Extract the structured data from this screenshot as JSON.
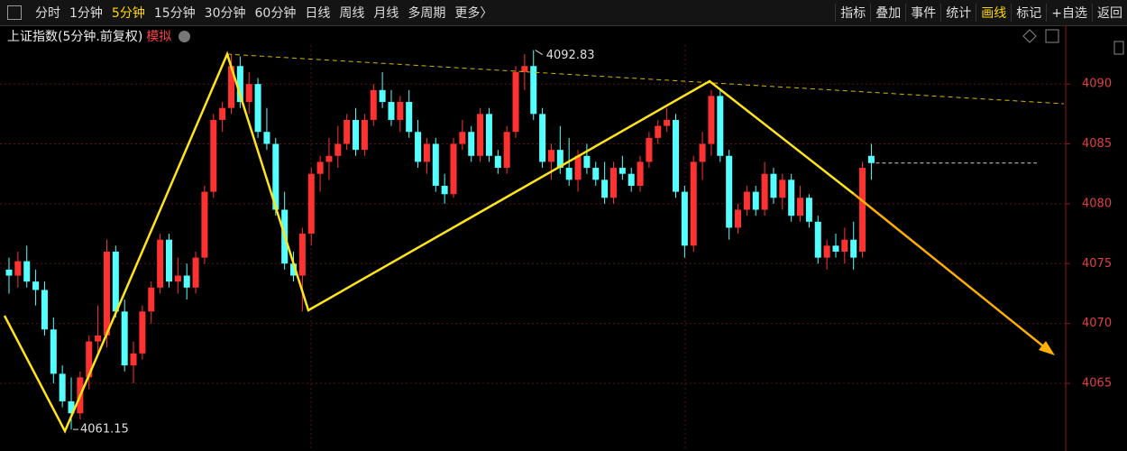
{
  "toolbar": {
    "left": [
      "分时",
      "1分钟",
      "5分钟",
      "15分钟",
      "30分钟",
      "60分钟",
      "日线",
      "周线",
      "月线",
      "多周期",
      "更多〉"
    ],
    "right": [
      "指标",
      "叠加",
      "事件",
      "统计",
      "画线",
      "标记",
      "+自选",
      "返回"
    ]
  },
  "header": {
    "title": "上证指数(5分钟.前复权)",
    "badge": "模拟"
  },
  "chart_data": {
    "type": "candlestick",
    "up_color": "#ff3232",
    "down_color": "#54ffff",
    "ylim": [
      4059.35,
      4093.25
    ],
    "yticks": [
      4065,
      4070,
      4075,
      4080,
      4085,
      4090
    ],
    "grid": true,
    "ohlc": [
      [
        4074.5,
        4075.5,
        4072.5,
        4074.0
      ],
      [
        4074.0,
        4076.0,
        4073.0,
        4075.2
      ],
      [
        4075.2,
        4076.5,
        4073.0,
        4073.5
      ],
      [
        4073.5,
        4074.5,
        4071.5,
        4072.8
      ],
      [
        4072.8,
        4073.5,
        4069.0,
        4069.5
      ],
      [
        4069.5,
        4070.5,
        4065.0,
        4065.8
      ],
      [
        4065.8,
        4066.5,
        4063.0,
        4063.5
      ],
      [
        4063.5,
        4065.5,
        4061.15,
        4062.5
      ],
      [
        4062.5,
        4066.0,
        4062.0,
        4065.5
      ],
      [
        4065.5,
        4069.0,
        4064.5,
        4068.5
      ],
      [
        4068.5,
        4071.5,
        4067.5,
        4069.0
      ],
      [
        4069.0,
        4077.0,
        4068.0,
        4076.0
      ],
      [
        4076.0,
        4076.5,
        4070.5,
        4071.0
      ],
      [
        4071.0,
        4072.0,
        4066.0,
        4066.5
      ],
      [
        4066.5,
        4068.5,
        4065.0,
        4067.5
      ],
      [
        4067.5,
        4071.5,
        4067.0,
        4071.0
      ],
      [
        4071.0,
        4073.5,
        4070.0,
        4073.0
      ],
      [
        4073.0,
        4077.5,
        4072.5,
        4077.0
      ],
      [
        4077.0,
        4077.5,
        4073.0,
        4073.5
      ],
      [
        4073.5,
        4075.5,
        4072.5,
        4074.0
      ],
      [
        4074.0,
        4075.0,
        4072.0,
        4073.0
      ],
      [
        4073.0,
        4076.0,
        4072.5,
        4075.5
      ],
      [
        4075.5,
        4081.5,
        4075.0,
        4081.0
      ],
      [
        4081.0,
        4087.5,
        4080.5,
        4087.0
      ],
      [
        4087.0,
        4088.5,
        4086.0,
        4088.0
      ],
      [
        4088.0,
        4092.5,
        4087.5,
        4091.5
      ],
      [
        4091.5,
        4092.3,
        4088.0,
        4088.5
      ],
      [
        4088.5,
        4091.0,
        4087.5,
        4090.0
      ],
      [
        4090.0,
        4090.5,
        4085.5,
        4086.0
      ],
      [
        4086.0,
        4088.0,
        4084.5,
        4085.0
      ],
      [
        4085.0,
        4085.5,
        4079.0,
        4079.5
      ],
      [
        4079.5,
        4081.0,
        4074.5,
        4075.0
      ],
      [
        4075.0,
        4076.0,
        4073.5,
        4074.0
      ],
      [
        4074.0,
        4078.0,
        4071.0,
        4077.5
      ],
      [
        4077.5,
        4083.0,
        4076.5,
        4082.5
      ],
      [
        4082.5,
        4084.0,
        4081.0,
        4083.5
      ],
      [
        4083.5,
        4085.5,
        4082.0,
        4084.0
      ],
      [
        4084.0,
        4086.5,
        4083.0,
        4085.0
      ],
      [
        4085.0,
        4087.5,
        4084.5,
        4087.0
      ],
      [
        4087.0,
        4088.0,
        4084.0,
        4084.5
      ],
      [
        4084.5,
        4087.5,
        4084.0,
        4087.0
      ],
      [
        4087.0,
        4090.0,
        4086.5,
        4089.5
      ],
      [
        4089.5,
        4091.0,
        4088.0,
        4088.5
      ],
      [
        4088.5,
        4089.5,
        4086.5,
        4087.0
      ],
      [
        4087.0,
        4089.0,
        4086.0,
        4088.5
      ],
      [
        4088.5,
        4089.5,
        4085.5,
        4086.0
      ],
      [
        4086.0,
        4087.0,
        4083.0,
        4083.5
      ],
      [
        4083.5,
        4085.5,
        4082.5,
        4085.0
      ],
      [
        4085.0,
        4085.5,
        4081.0,
        4081.5
      ],
      [
        4081.5,
        4082.5,
        4080.0,
        4080.8
      ],
      [
        4080.8,
        4085.5,
        4080.5,
        4085.0
      ],
      [
        4085.0,
        4087.0,
        4084.5,
        4086.0
      ],
      [
        4086.0,
        4086.5,
        4083.5,
        4084.0
      ],
      [
        4084.0,
        4088.0,
        4083.5,
        4087.5
      ],
      [
        4087.5,
        4088.0,
        4083.5,
        4084.0
      ],
      [
        4084.0,
        4084.5,
        4082.5,
        4083.0
      ],
      [
        4083.0,
        4086.5,
        4082.5,
        4086.0
      ],
      [
        4086.0,
        4091.5,
        4085.5,
        4091.0
      ],
      [
        4091.0,
        4092.5,
        4089.5,
        4091.5
      ],
      [
        4091.5,
        4092.83,
        4087.0,
        4087.5
      ],
      [
        4087.5,
        4088.0,
        4083.0,
        4083.5
      ],
      [
        4083.5,
        4085.0,
        4082.0,
        4084.5
      ],
      [
        4084.5,
        4086.5,
        4082.5,
        4083.0
      ],
      [
        4083.0,
        4085.5,
        4081.5,
        4082.0
      ],
      [
        4082.0,
        4084.5,
        4081.0,
        4084.0
      ],
      [
        4084.0,
        4085.0,
        4082.5,
        4083.0
      ],
      [
        4083.0,
        4083.5,
        4081.5,
        4082.0
      ],
      [
        4082.0,
        4083.5,
        4080.0,
        4080.5
      ],
      [
        4080.5,
        4083.5,
        4080.0,
        4083.0
      ],
      [
        4083.0,
        4084.0,
        4082.0,
        4082.5
      ],
      [
        4082.5,
        4083.0,
        4081.0,
        4081.5
      ],
      [
        4081.5,
        4084.0,
        4081.0,
        4083.5
      ],
      [
        4083.5,
        4086.0,
        4083.0,
        4085.5
      ],
      [
        4085.5,
        4087.0,
        4085.0,
        4086.5
      ],
      [
        4086.5,
        4088.0,
        4086.0,
        4087.0
      ],
      [
        4087.0,
        4087.5,
        4080.5,
        4081.0
      ],
      [
        4081.0,
        4081.5,
        4075.5,
        4076.5
      ],
      [
        4076.5,
        4084.0,
        4076.0,
        4083.5
      ],
      [
        4083.5,
        4086.0,
        4082.0,
        4085.0
      ],
      [
        4085.0,
        4089.5,
        4084.0,
        4089.0
      ],
      [
        4089.0,
        4089.5,
        4083.5,
        4084.0
      ],
      [
        4084.0,
        4084.5,
        4077.0,
        4078.0
      ],
      [
        4078.0,
        4080.0,
        4077.5,
        4079.5
      ],
      [
        4079.5,
        4081.5,
        4079.0,
        4081.0
      ],
      [
        4081.0,
        4081.5,
        4079.0,
        4079.5
      ],
      [
        4079.5,
        4083.5,
        4079.0,
        4082.5
      ],
      [
        4082.5,
        4083.0,
        4080.0,
        4080.5
      ],
      [
        4080.5,
        4082.5,
        4079.5,
        4082.0
      ],
      [
        4082.0,
        4082.5,
        4078.5,
        4079.0
      ],
      [
        4079.0,
        4081.5,
        4078.5,
        4080.5
      ],
      [
        4080.5,
        4080.8,
        4078.0,
        4078.5
      ],
      [
        4078.5,
        4079.0,
        4075.0,
        4075.5
      ],
      [
        4075.5,
        4077.0,
        4074.5,
        4076.5
      ],
      [
        4076.5,
        4077.5,
        4075.5,
        4076.0
      ],
      [
        4076.0,
        4078.0,
        4075.0,
        4077.0
      ],
      [
        4077.0,
        4078.5,
        4074.5,
        4075.5
      ],
      [
        4076.0,
        4083.5,
        4075.5,
        4083.0
      ],
      [
        4084.0,
        4085.0,
        4082.0,
        4083.4
      ]
    ]
  }
}
